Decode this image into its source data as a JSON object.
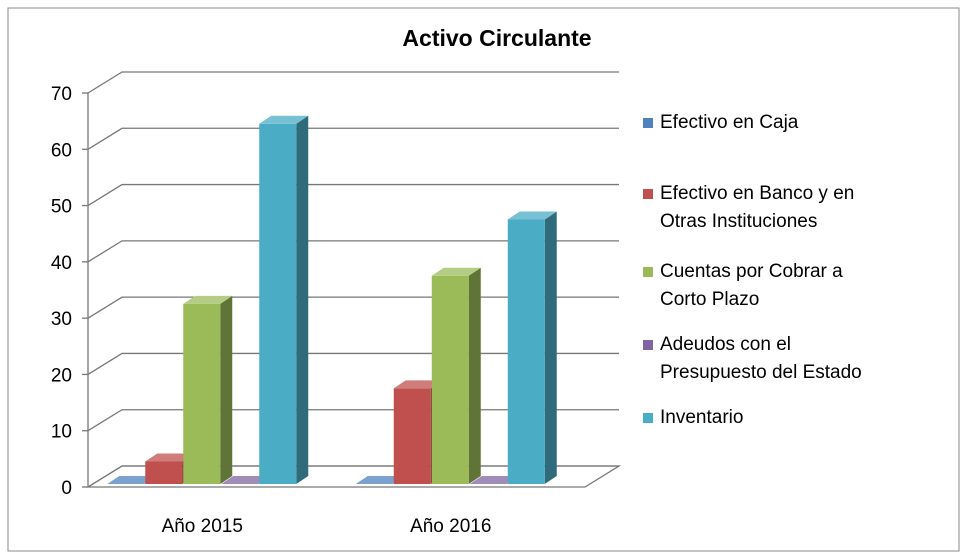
{
  "chart_data": {
    "type": "bar3d",
    "title": "Activo Circulante",
    "categories": [
      "Año 2015",
      "Año 2016"
    ],
    "series": [
      {
        "name": "Efectivo en Caja",
        "color": "#4f81bd",
        "values": [
          0,
          0
        ]
      },
      {
        "name": "Efectivo en Banco y en\nOtras Instituciones",
        "color": "#c0504d",
        "values": [
          4,
          17
        ]
      },
      {
        "name": "Cuentas por Cobrar a\nCorto Plazo",
        "color": "#9bbb59",
        "values": [
          32,
          37
        ]
      },
      {
        "name": "Adeudos con el\nPresupuesto del Estado",
        "color": "#8064a2",
        "values": [
          0,
          0
        ]
      },
      {
        "name": "Inventario",
        "color": "#4bacc6",
        "values": [
          64,
          47
        ]
      }
    ],
    "ylim": [
      0,
      70
    ],
    "yticks": [
      0,
      10,
      20,
      30,
      40,
      50,
      60,
      70
    ],
    "grid": true,
    "legend": "right"
  }
}
